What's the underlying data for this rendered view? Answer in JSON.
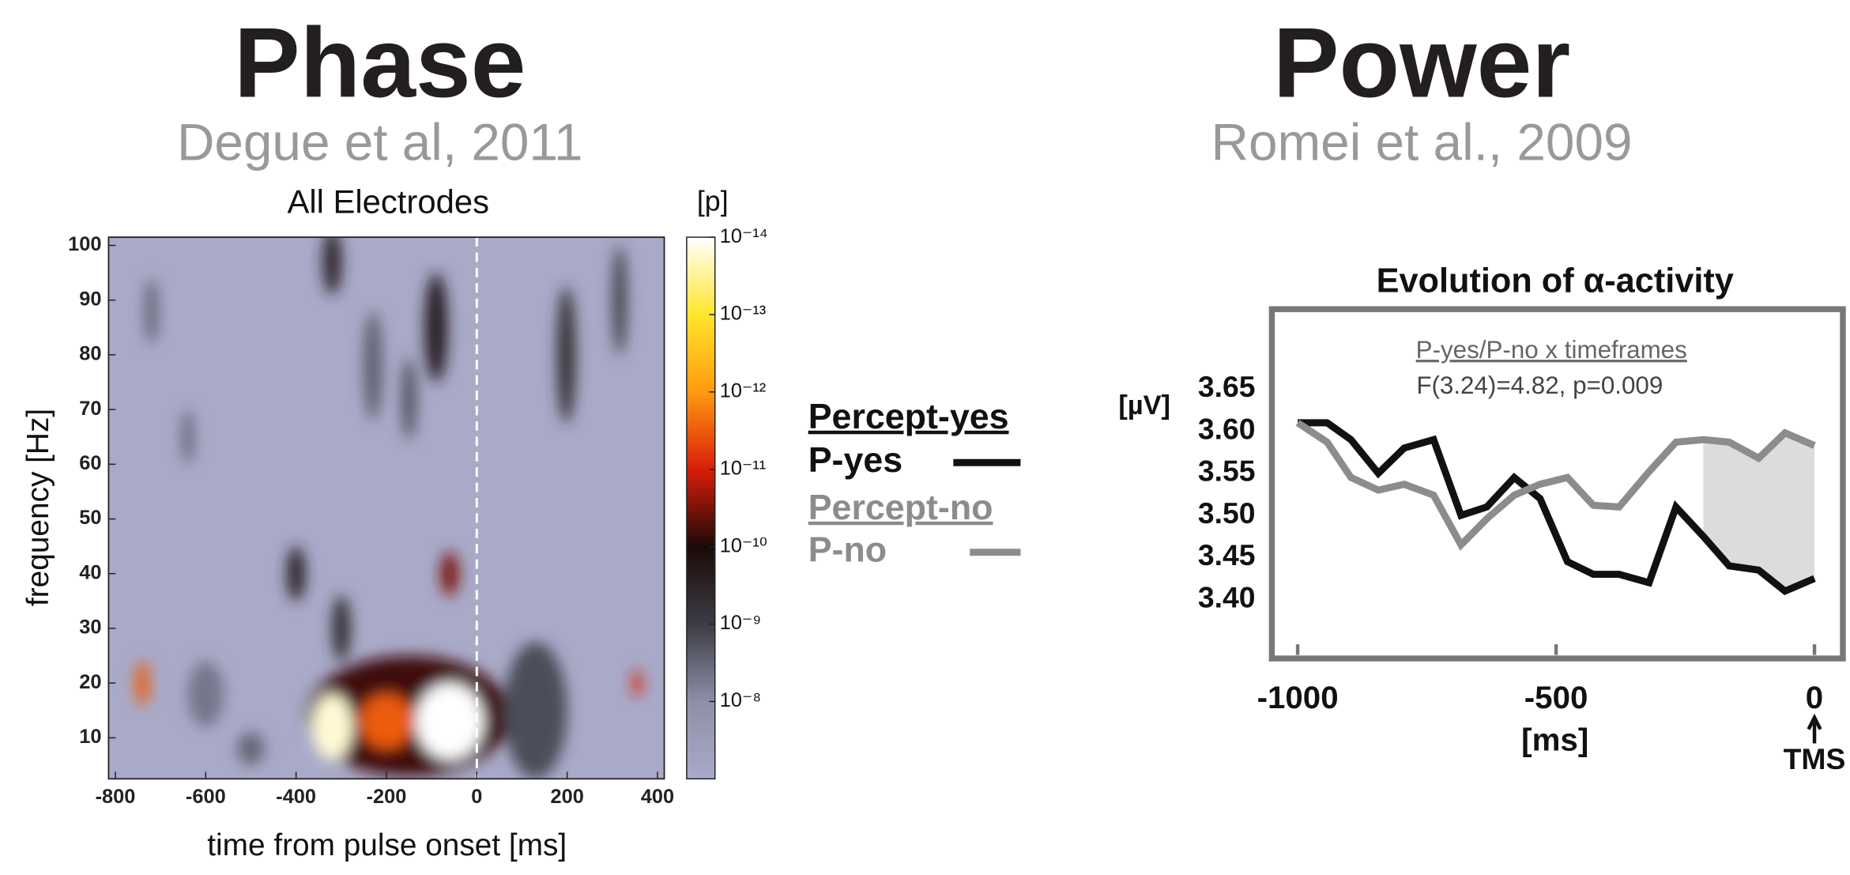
{
  "sections": [
    {
      "title": "Phase",
      "citation": "Degue et al, 2011"
    },
    {
      "title": "Power",
      "citation": "Romei et al., 2009"
    }
  ],
  "chart_data": [
    {
      "type": "heatmap",
      "title": "All Electrodes",
      "x_label": "time from pulse onset [ms]",
      "y_label": "frequency [Hz]",
      "colorbar_label": "[p]",
      "x": [
        -150,
        130,
        -60,
        -320,
        -200,
        -740,
        -400,
        -60,
        -300,
        198,
        -320,
        -90,
        316,
        -720,
        -640,
        -600,
        -500,
        355,
        -230,
        -150
      ],
      "y": [
        14,
        15,
        13,
        12,
        13,
        20,
        40,
        40,
        30,
        80,
        97,
        85,
        90,
        88,
        65,
        18,
        8,
        20,
        78,
        72
      ],
      "width": [
        450,
        140,
        150,
        90,
        120,
        30,
        40,
        40,
        40,
        40,
        40,
        50,
        30,
        30,
        30,
        80,
        60,
        20,
        40,
        30
      ],
      "height": [
        22,
        25,
        14,
        12,
        10,
        8,
        10,
        8,
        12,
        25,
        12,
        20,
        20,
        12,
        10,
        12,
        6,
        5,
        20,
        15
      ],
      "values": [
        -10.2,
        -8.8,
        -14,
        -13.8,
        -11.5,
        -11.5,
        -9.5,
        -10.5,
        -9.3,
        -9.3,
        -9.5,
        -9.6,
        -9,
        -8.5,
        -8.4,
        -8.3,
        -8.5,
        -11,
        -8.6,
        -8.8
      ],
      "xlim": [
        -815,
        415
      ],
      "ylim": [
        2.5,
        101.5
      ],
      "xticks": [
        -800,
        -600,
        -400,
        -200,
        0,
        200,
        400
      ],
      "yticks": [
        10,
        20,
        30,
        40,
        50,
        60,
        70,
        80,
        90,
        100
      ],
      "clim": [
        -14,
        -7
      ],
      "cticks": [
        {
          "value": -14,
          "label": "10⁻¹⁴"
        },
        {
          "value": -13,
          "label": "10⁻¹³"
        },
        {
          "value": -12,
          "label": "10⁻¹²"
        },
        {
          "value": -11,
          "label": "10⁻¹¹"
        },
        {
          "value": -10,
          "label": "10⁻¹⁰"
        },
        {
          "value": -9,
          "label": "10⁻⁹"
        },
        {
          "value": -8,
          "label": "10⁻⁸"
        }
      ],
      "colormap": [
        "#ffffff",
        "#ffe62a",
        "#ff9a10",
        "#d81e0a",
        "#1a0a08",
        "#3c3c44",
        "#8e8fa8",
        "#a9aac8"
      ],
      "background": "#a9aac8",
      "vline": 0
    },
    {
      "type": "line",
      "title": "Evolution of α-activity",
      "annotation_title": "P-yes/P-no x timeframes",
      "annotation": "F(3.24)=4.82, p=0.009",
      "y_label": "[µV]",
      "x_label": "[ms]",
      "marker_label": "TMS",
      "marker_x": 0,
      "x": [
        -1000,
        -943,
        -897,
        -844,
        -794,
        -737,
        -684,
        -634,
        -581,
        -531,
        -478,
        -428,
        -378,
        -320,
        -268,
        -215,
        -165,
        -108,
        -57,
        0
      ],
      "series": [
        {
          "name": "P-yes",
          "group": "Percept-yes",
          "color": "#111111",
          "values": [
            3.61,
            3.61,
            3.59,
            3.55,
            3.58,
            3.59,
            3.5,
            3.51,
            3.545,
            3.52,
            3.445,
            3.43,
            3.43,
            3.42,
            3.51,
            3.475,
            3.44,
            3.435,
            3.41,
            3.425
          ]
        },
        {
          "name": "P-no",
          "group": "Percept-no",
          "color": "#8c8c8c",
          "values": [
            3.61,
            3.587,
            3.545,
            3.53,
            3.537,
            3.524,
            3.465,
            3.496,
            3.524,
            3.537,
            3.545,
            3.512,
            3.51,
            3.552,
            3.587,
            3.59,
            3.587,
            3.568,
            3.598,
            3.583
          ]
        }
      ],
      "xlim": [
        -1050,
        55
      ],
      "ylim": [
        3.33,
        3.745
      ],
      "xticks": [
        -1000,
        -500,
        0
      ],
      "yticks": [
        {
          "value": 3.4,
          "label": "3.40"
        },
        3.45,
        {
          "value": 3.5,
          "label": "3.50"
        },
        3.55,
        {
          "value": 3.6,
          "label": "3.60"
        },
        3.65
      ],
      "shaded_xlim": [
        -215,
        0
      ]
    }
  ]
}
